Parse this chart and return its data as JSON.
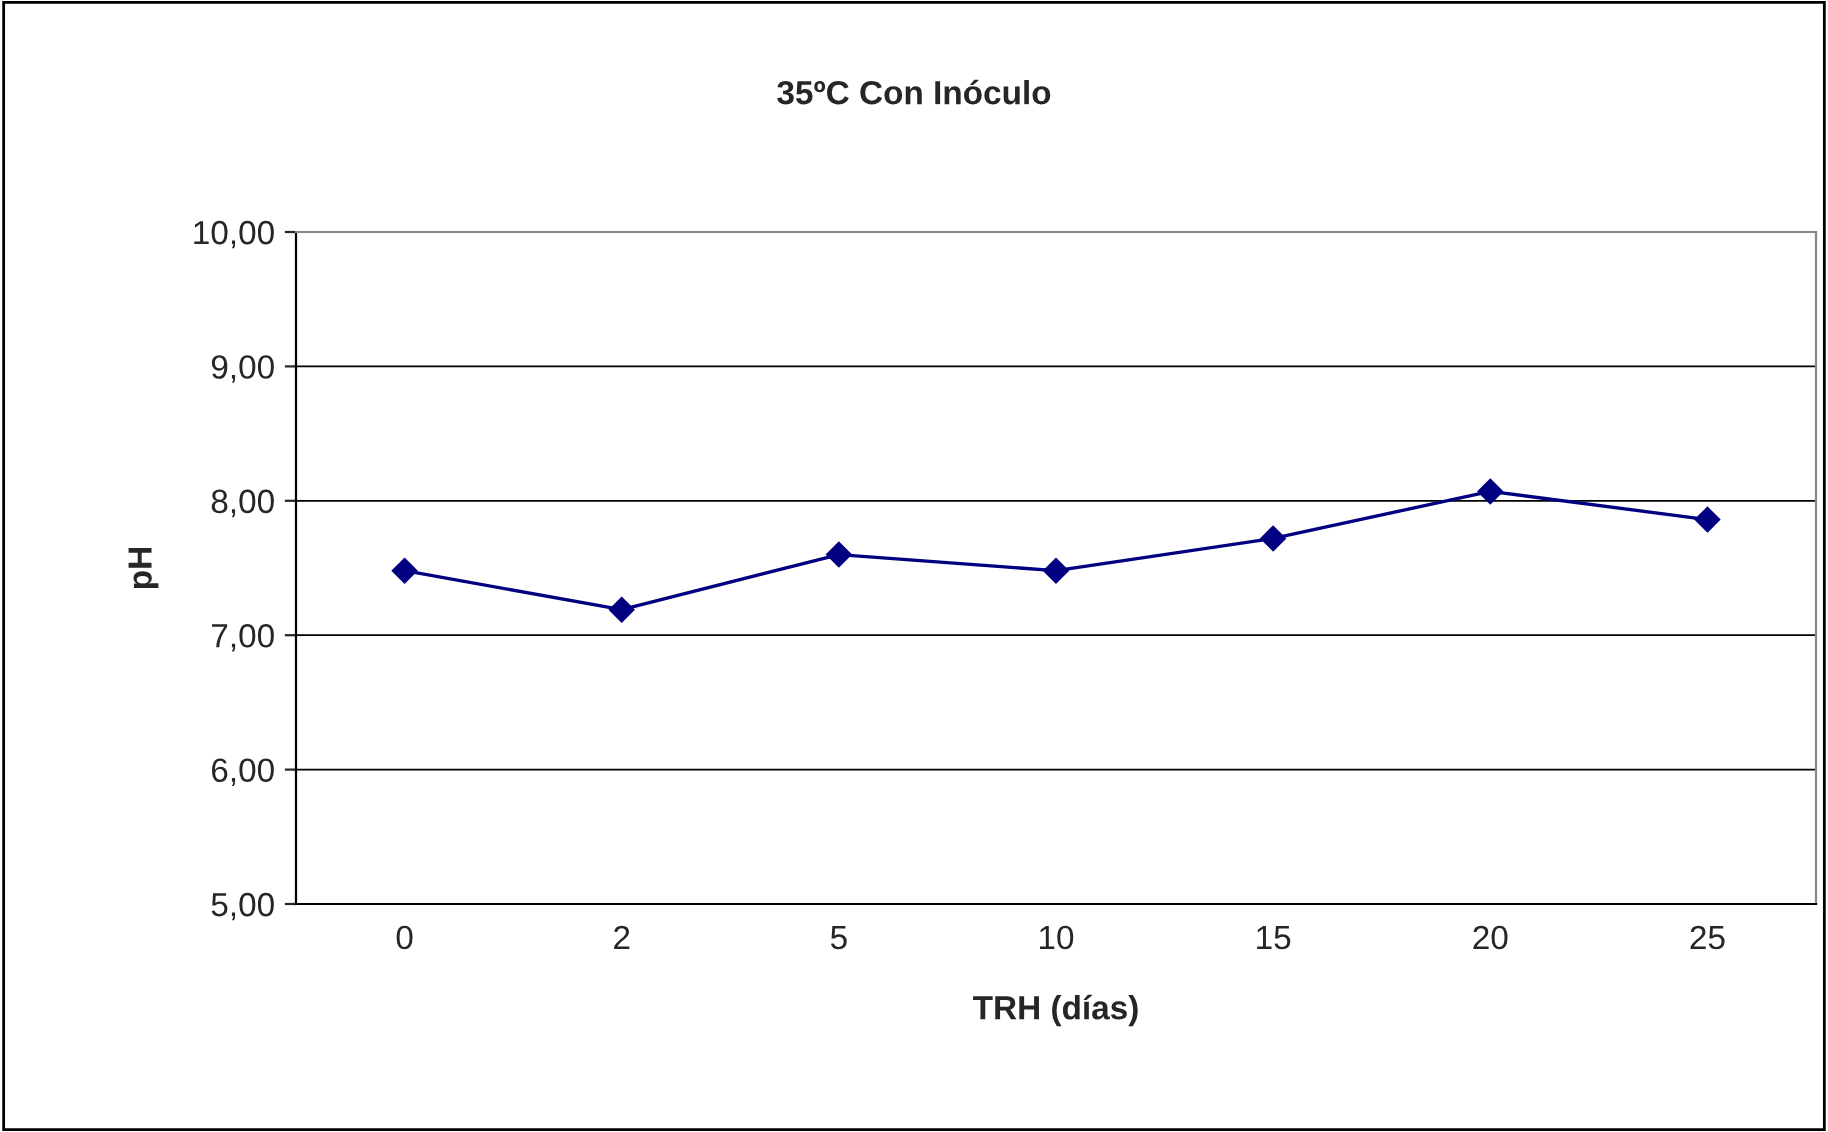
{
  "chart_data": {
    "type": "line",
    "title": "35ºC Con Inóculo",
    "xlabel": "TRH (días)",
    "ylabel": "pH",
    "categories": [
      "0",
      "2",
      "5",
      "10",
      "15",
      "20",
      "25"
    ],
    "series": [
      {
        "color": "#000080",
        "values": [
          7.48,
          7.19,
          7.6,
          7.48,
          7.72,
          8.07,
          7.86
        ]
      }
    ],
    "ylim": [
      5,
      10
    ],
    "yticks": [
      {
        "value": 5,
        "label": "5,00"
      },
      {
        "value": 6,
        "label": "6,00"
      },
      {
        "value": 7,
        "label": "7,00"
      },
      {
        "value": 8,
        "label": "8,00"
      },
      {
        "value": 9,
        "label": "9,00"
      },
      {
        "value": 10,
        "label": "10,00"
      }
    ],
    "grid": "y",
    "marker": "diamond",
    "line_style": "solid"
  }
}
